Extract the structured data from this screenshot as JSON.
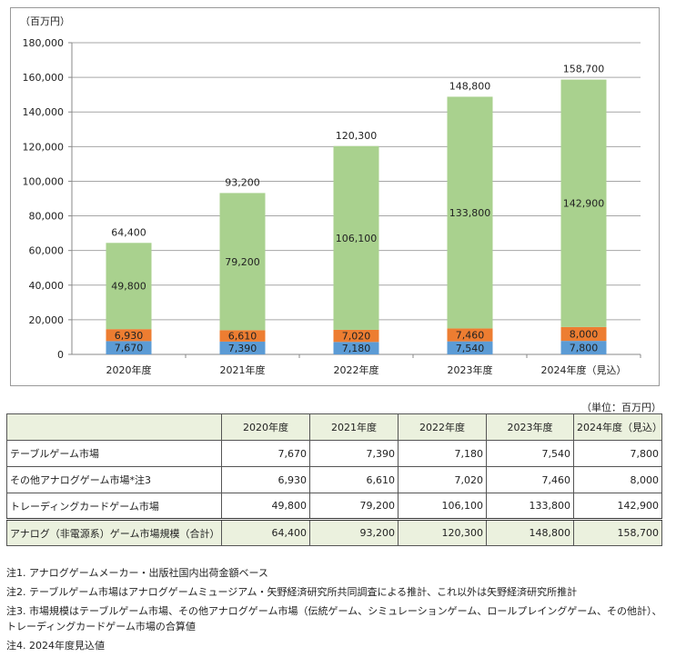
{
  "chart_data": {
    "type": "bar",
    "stacked": true,
    "yunit_label": "（百万円）",
    "ylim": [
      0,
      180000
    ],
    "yticks": [
      0,
      20000,
      40000,
      60000,
      80000,
      100000,
      120000,
      140000,
      160000,
      180000
    ],
    "ytick_labels": [
      "0",
      "20,000",
      "40,000",
      "60,000",
      "80,000",
      "100,000",
      "120,000",
      "140,000",
      "160,000",
      "180,000"
    ],
    "grid": true,
    "categories": [
      "2020年度",
      "2021年度",
      "2022年度",
      "2023年度",
      "2024年度（見込）"
    ],
    "series": [
      {
        "values": [
          7670,
          7390,
          7180,
          7540,
          7800
        ],
        "labels": [
          "7,670",
          "7,390",
          "7,180",
          "7,540",
          "7,800"
        ],
        "color": "#5b9bd5"
      },
      {
        "values": [
          6930,
          6610,
          7020,
          7460,
          8000
        ],
        "labels": [
          "6,930",
          "6,610",
          "7,020",
          "7,460",
          "8,000"
        ],
        "color": "#ed7d31"
      },
      {
        "values": [
          49800,
          79200,
          106100,
          133800,
          142900
        ],
        "labels": [
          "49,800",
          "79,200",
          "106,100",
          "133,800",
          "142,900"
        ],
        "color": "#a9d18e"
      }
    ],
    "totals": [
      64400,
      93200,
      120300,
      148800,
      158700
    ],
    "total_labels": [
      "64,400",
      "93,200",
      "120,300",
      "148,800",
      "158,700"
    ]
  },
  "table": {
    "unit": "（単位：百万円）",
    "headers": [
      "",
      "2020年度",
      "2021年度",
      "2022年度",
      "2023年度",
      "2024年度（見込）"
    ],
    "rows": [
      [
        "テーブルゲーム市場",
        "7,670",
        "7,390",
        "7,180",
        "7,540",
        "7,800"
      ],
      [
        "その他アナログゲーム市場*注3",
        "6,930",
        "6,610",
        "7,020",
        "7,460",
        "8,000"
      ],
      [
        "トレーディングカードゲーム市場",
        "49,800",
        "79,200",
        "106,100",
        "133,800",
        "142,900"
      ],
      [
        "アナログ（非電源系）ゲーム市場規模（合計）",
        "64,400",
        "93,200",
        "120,300",
        "148,800",
        "158,700"
      ]
    ]
  },
  "notes": [
    "注1. アナログゲームメーカー・出版社国内出荷金額ベース",
    "注2. テーブルゲーム市場はアナログゲームミュージアム・矢野経済研究所共同調査による推計、これ以外は矢野経済研究所推計",
    "注3. 市場規模はテーブルゲーム市場、その他アナログゲーム市場（伝統ゲーム、シミュレーションゲーム、ロールプレイングゲーム、その他計）、トレーディングカードゲーム市場の合算値",
    "注4. 2024年度見込値"
  ]
}
